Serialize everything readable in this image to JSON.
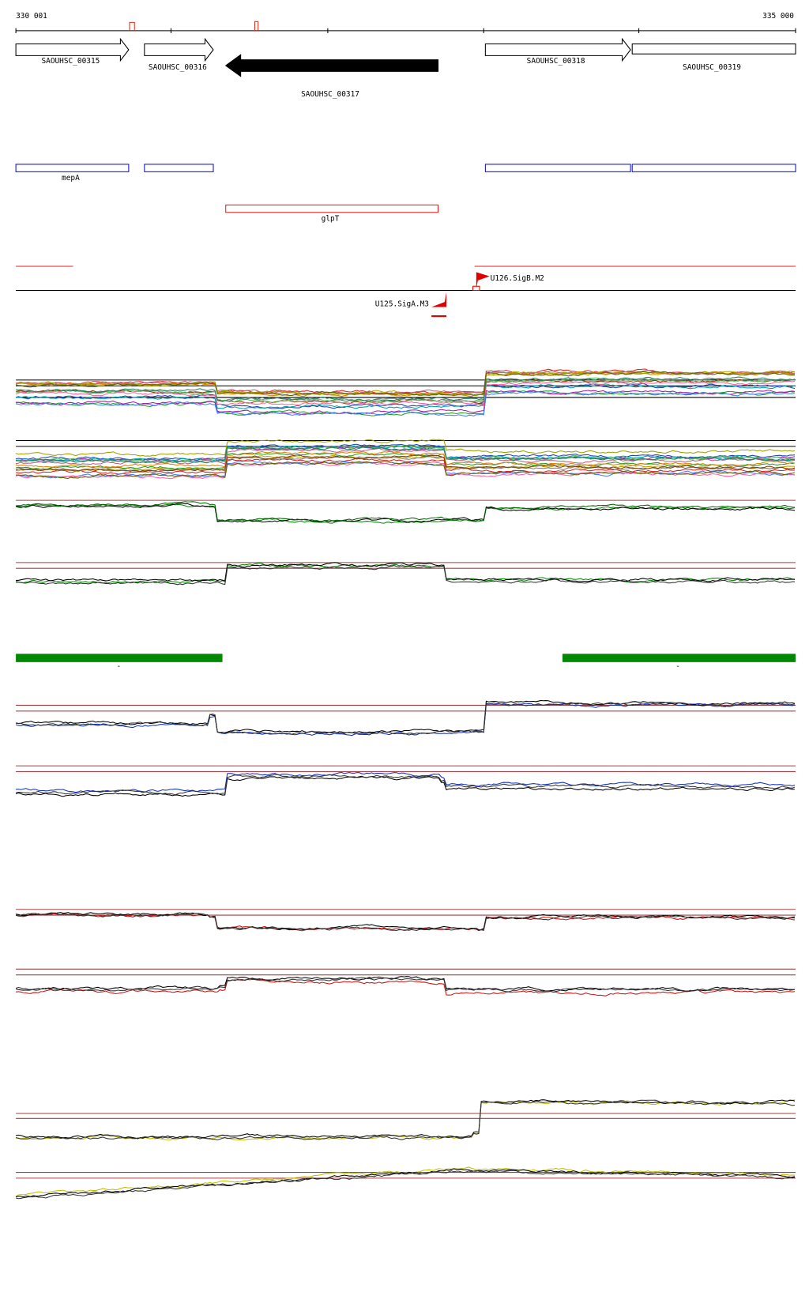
{
  "ruler": {
    "start": "330 001",
    "end": "335 000"
  },
  "genes": [
    {
      "label": "SAOUHSC_00315"
    },
    {
      "label": "SAOUHSC_00316"
    },
    {
      "label": "SAOUHSC_00317"
    },
    {
      "label": "SAOUHSC_00318"
    },
    {
      "label": "SAOUHSC_00319"
    }
  ],
  "annotations": [
    {
      "label": "mepA"
    },
    {
      "label": "glpT"
    }
  ],
  "promoters": [
    {
      "label": "U126.SigB.M2"
    },
    {
      "label": "U125.SigA.M3"
    }
  ],
  "regions": [
    {
      "label": "-"
    },
    {
      "label": "-"
    }
  ]
}
